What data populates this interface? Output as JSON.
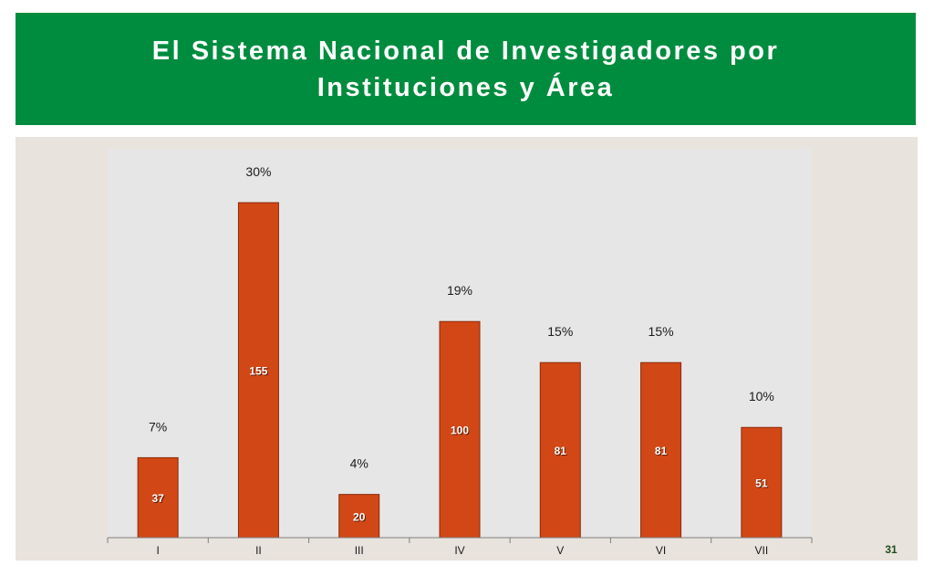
{
  "slide": {
    "title": "El Sistema Nacional de Investigadores por\nInstituciones y Área",
    "page_number": "31"
  },
  "colors": {
    "banner": "#008c3e",
    "panel": "#e8e3dc",
    "plot_area": "#e6e6e6",
    "bar": "#d24716",
    "bar_border": "#8a2a0a"
  },
  "chart_data": {
    "type": "bar",
    "categories": [
      "I",
      "II",
      "III",
      "IV",
      "V",
      "VI",
      "VII"
    ],
    "values": [
      37,
      155,
      20,
      100,
      81,
      81,
      51
    ],
    "percent_labels": [
      "7%",
      "30%",
      "4%",
      "19%",
      "15%",
      "15%",
      "10%"
    ],
    "title": "",
    "xlabel": "",
    "ylabel": "",
    "grid": false,
    "legend": "none"
  }
}
